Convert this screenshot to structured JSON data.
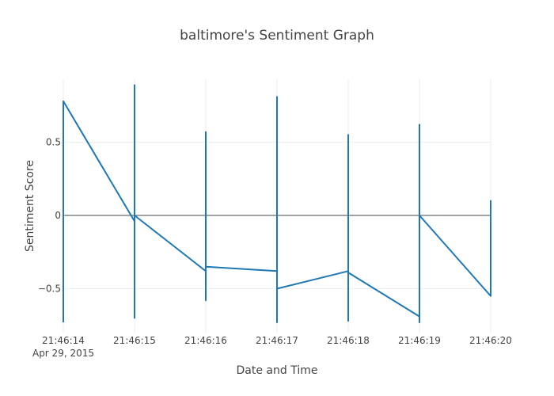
{
  "chart_data": {
    "type": "line",
    "title": "baltimore's Sentiment Graph",
    "xlabel": "Date and Time",
    "ylabel": "Sentiment Score",
    "x_ticks": [
      {
        "t": 0,
        "label": "21:46:14",
        "sublabel": "Apr 29, 2015"
      },
      {
        "t": 1,
        "label": "21:46:15",
        "sublabel": ""
      },
      {
        "t": 2,
        "label": "21:46:16",
        "sublabel": ""
      },
      {
        "t": 3,
        "label": "21:46:17",
        "sublabel": ""
      },
      {
        "t": 4,
        "label": "21:46:18",
        "sublabel": ""
      },
      {
        "t": 5,
        "label": "21:46:19",
        "sublabel": ""
      },
      {
        "t": 6,
        "label": "21:46:20",
        "sublabel": ""
      }
    ],
    "y_ticks": [
      {
        "v": 0.5,
        "label": "0.5"
      },
      {
        "v": 0,
        "label": "0"
      },
      {
        "v": -0.5,
        "label": "−0.5"
      }
    ],
    "xlim": [
      0,
      6
    ],
    "ylim": [
      -0.8,
      0.93
    ],
    "series": [
      {
        "color": "#1f77b4",
        "points": [
          [
            0,
            -0.73
          ],
          [
            0,
            0.78
          ],
          [
            1,
            -0.04
          ],
          [
            1,
            0.89
          ],
          [
            1,
            -0.7
          ],
          [
            1,
            0.0
          ],
          [
            2,
            -0.38
          ],
          [
            2,
            0.57
          ],
          [
            2,
            -0.58
          ],
          [
            2,
            -0.35
          ],
          [
            3,
            -0.38
          ],
          [
            3,
            0.81
          ],
          [
            3,
            -0.73
          ],
          [
            3,
            -0.5
          ],
          [
            4,
            -0.38
          ],
          [
            4,
            0.55
          ],
          [
            4,
            -0.72
          ],
          [
            4,
            -0.39
          ],
          [
            5,
            -0.69
          ],
          [
            5,
            0.62
          ],
          [
            5,
            -0.73
          ],
          [
            5,
            0.0
          ],
          [
            6,
            -0.55
          ],
          [
            6,
            0.1
          ],
          [
            6,
            -0.55
          ]
        ]
      }
    ]
  }
}
